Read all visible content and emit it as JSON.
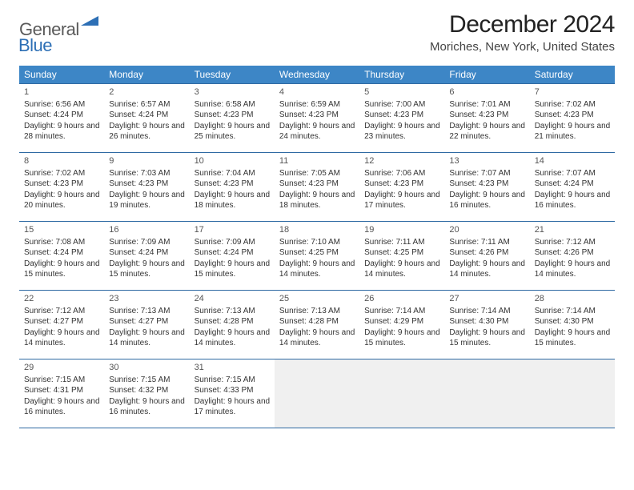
{
  "logo": {
    "word1": "General",
    "word2": "Blue",
    "accent_color": "#2d6fb5"
  },
  "title": "December 2024",
  "location": "Moriches, New York, United States",
  "header_bg": "#3d86c6",
  "rule_color": "#2f6aa3",
  "day_headers": [
    "Sunday",
    "Monday",
    "Tuesday",
    "Wednesday",
    "Thursday",
    "Friday",
    "Saturday"
  ],
  "weeks": [
    [
      {
        "n": "1",
        "sr": "6:56 AM",
        "ss": "4:24 PM",
        "dl": "9 hours and 28 minutes."
      },
      {
        "n": "2",
        "sr": "6:57 AM",
        "ss": "4:24 PM",
        "dl": "9 hours and 26 minutes."
      },
      {
        "n": "3",
        "sr": "6:58 AM",
        "ss": "4:23 PM",
        "dl": "9 hours and 25 minutes."
      },
      {
        "n": "4",
        "sr": "6:59 AM",
        "ss": "4:23 PM",
        "dl": "9 hours and 24 minutes."
      },
      {
        "n": "5",
        "sr": "7:00 AM",
        "ss": "4:23 PM",
        "dl": "9 hours and 23 minutes."
      },
      {
        "n": "6",
        "sr": "7:01 AM",
        "ss": "4:23 PM",
        "dl": "9 hours and 22 minutes."
      },
      {
        "n": "7",
        "sr": "7:02 AM",
        "ss": "4:23 PM",
        "dl": "9 hours and 21 minutes."
      }
    ],
    [
      {
        "n": "8",
        "sr": "7:02 AM",
        "ss": "4:23 PM",
        "dl": "9 hours and 20 minutes."
      },
      {
        "n": "9",
        "sr": "7:03 AM",
        "ss": "4:23 PM",
        "dl": "9 hours and 19 minutes."
      },
      {
        "n": "10",
        "sr": "7:04 AM",
        "ss": "4:23 PM",
        "dl": "9 hours and 18 minutes."
      },
      {
        "n": "11",
        "sr": "7:05 AM",
        "ss": "4:23 PM",
        "dl": "9 hours and 18 minutes."
      },
      {
        "n": "12",
        "sr": "7:06 AM",
        "ss": "4:23 PM",
        "dl": "9 hours and 17 minutes."
      },
      {
        "n": "13",
        "sr": "7:07 AM",
        "ss": "4:23 PM",
        "dl": "9 hours and 16 minutes."
      },
      {
        "n": "14",
        "sr": "7:07 AM",
        "ss": "4:24 PM",
        "dl": "9 hours and 16 minutes."
      }
    ],
    [
      {
        "n": "15",
        "sr": "7:08 AM",
        "ss": "4:24 PM",
        "dl": "9 hours and 15 minutes."
      },
      {
        "n": "16",
        "sr": "7:09 AM",
        "ss": "4:24 PM",
        "dl": "9 hours and 15 minutes."
      },
      {
        "n": "17",
        "sr": "7:09 AM",
        "ss": "4:24 PM",
        "dl": "9 hours and 15 minutes."
      },
      {
        "n": "18",
        "sr": "7:10 AM",
        "ss": "4:25 PM",
        "dl": "9 hours and 14 minutes."
      },
      {
        "n": "19",
        "sr": "7:11 AM",
        "ss": "4:25 PM",
        "dl": "9 hours and 14 minutes."
      },
      {
        "n": "20",
        "sr": "7:11 AM",
        "ss": "4:26 PM",
        "dl": "9 hours and 14 minutes."
      },
      {
        "n": "21",
        "sr": "7:12 AM",
        "ss": "4:26 PM",
        "dl": "9 hours and 14 minutes."
      }
    ],
    [
      {
        "n": "22",
        "sr": "7:12 AM",
        "ss": "4:27 PM",
        "dl": "9 hours and 14 minutes."
      },
      {
        "n": "23",
        "sr": "7:13 AM",
        "ss": "4:27 PM",
        "dl": "9 hours and 14 minutes."
      },
      {
        "n": "24",
        "sr": "7:13 AM",
        "ss": "4:28 PM",
        "dl": "9 hours and 14 minutes."
      },
      {
        "n": "25",
        "sr": "7:13 AM",
        "ss": "4:28 PM",
        "dl": "9 hours and 14 minutes."
      },
      {
        "n": "26",
        "sr": "7:14 AM",
        "ss": "4:29 PM",
        "dl": "9 hours and 15 minutes."
      },
      {
        "n": "27",
        "sr": "7:14 AM",
        "ss": "4:30 PM",
        "dl": "9 hours and 15 minutes."
      },
      {
        "n": "28",
        "sr": "7:14 AM",
        "ss": "4:30 PM",
        "dl": "9 hours and 15 minutes."
      }
    ],
    [
      {
        "n": "29",
        "sr": "7:15 AM",
        "ss": "4:31 PM",
        "dl": "9 hours and 16 minutes."
      },
      {
        "n": "30",
        "sr": "7:15 AM",
        "ss": "4:32 PM",
        "dl": "9 hours and 16 minutes."
      },
      {
        "n": "31",
        "sr": "7:15 AM",
        "ss": "4:33 PM",
        "dl": "9 hours and 17 minutes."
      },
      null,
      null,
      null,
      null
    ]
  ],
  "labels": {
    "sunrise": "Sunrise: ",
    "sunset": "Sunset: ",
    "daylight": "Daylight: "
  }
}
